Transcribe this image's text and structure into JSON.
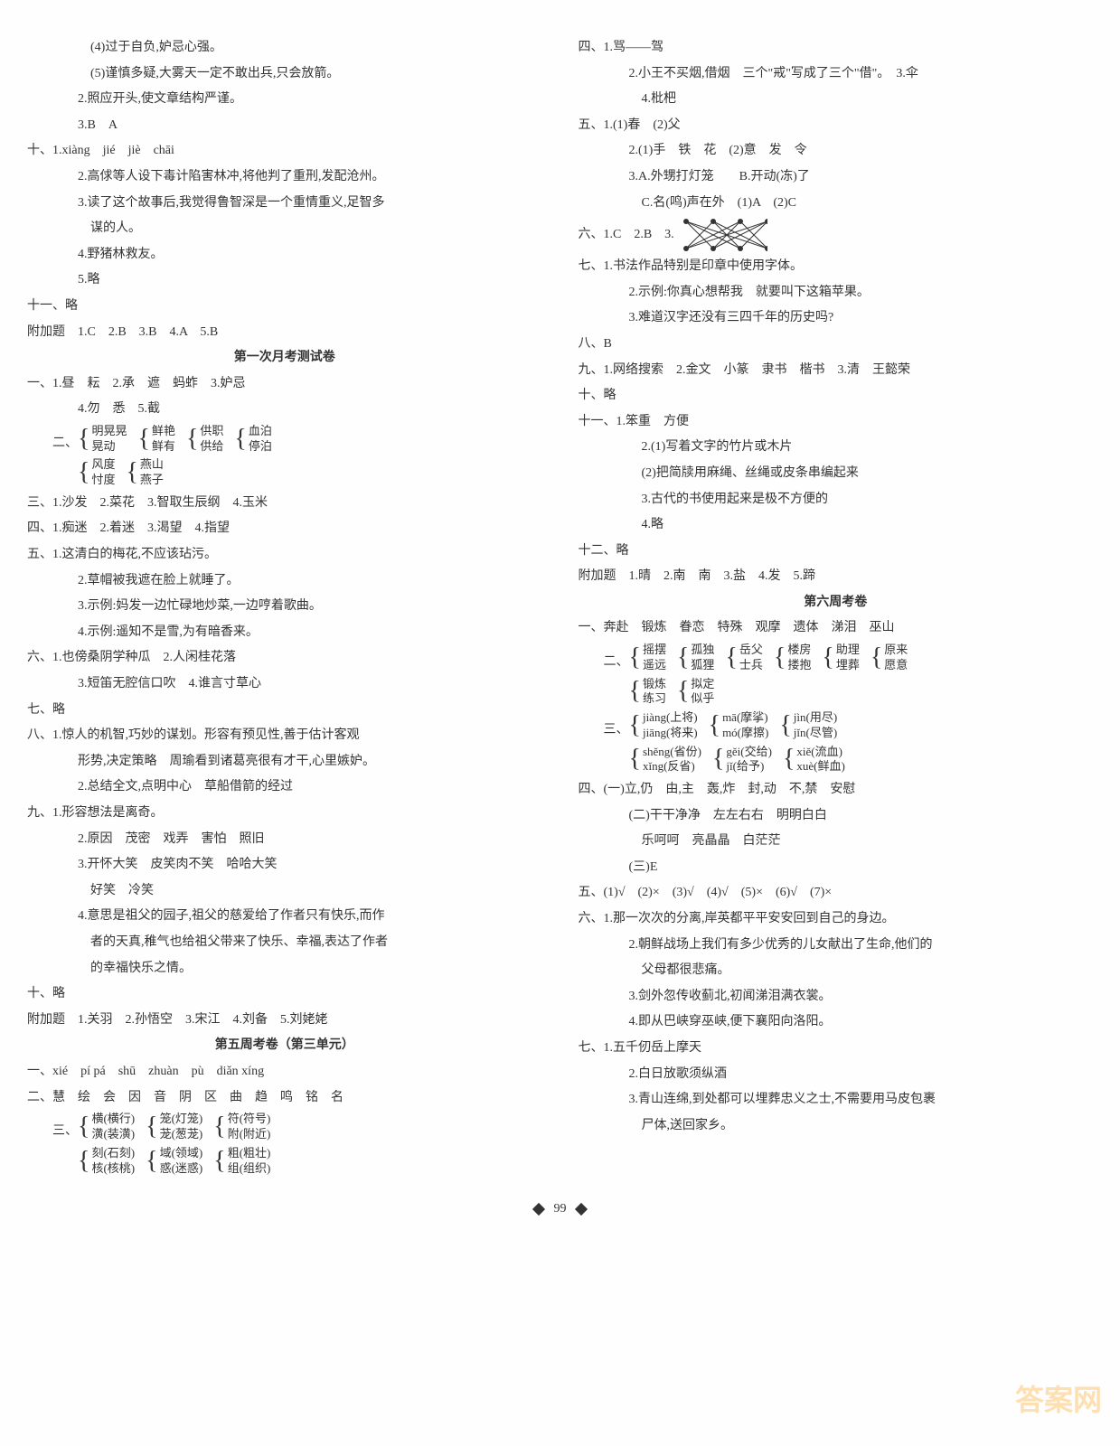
{
  "left": {
    "lines": [
      {
        "text": "(4)过于自负,妒忌心强。",
        "cls": "indent-3"
      },
      {
        "text": "(5)谨慎多疑,大雾天一定不敢出兵,只会放箭。",
        "cls": "indent-3"
      },
      {
        "text": "2.照应开头,使文章结构严谨。",
        "cls": "indent-2"
      },
      {
        "text": "3.B　A",
        "cls": "indent-2"
      },
      {
        "text": "十、1.xiàng　jié　jiè　chāi",
        "cls": ""
      },
      {
        "text": "2.高俅等人设下毒计陷害林冲,将他判了重刑,发配沧州。",
        "cls": "indent-2"
      },
      {
        "text": "3.读了这个故事后,我觉得鲁智深是一个重情重义,足智多",
        "cls": "indent-2"
      },
      {
        "text": "谋的人。",
        "cls": "indent-3"
      },
      {
        "text": "4.野猪林救友。",
        "cls": "indent-2"
      },
      {
        "text": "5.略",
        "cls": "indent-2"
      },
      {
        "text": "十一、略",
        "cls": ""
      },
      {
        "text": "附加题　1.C　2.B　3.B　4.A　5.B",
        "cls": ""
      }
    ],
    "section1_title": "第一次月考测试卷",
    "section1": [
      {
        "text": "一、1.昼　耘　2.承　遮　蚂蚱　3.妒忌",
        "cls": ""
      },
      {
        "text": "4.勿　悉　5.截",
        "cls": "indent-2"
      }
    ],
    "brackets_row1": {
      "prefix": "二、",
      "groups": [
        [
          "明晃晃",
          "晃动"
        ],
        [
          "鲜艳",
          "鲜有"
        ],
        [
          "供职",
          "供给"
        ],
        [
          "血泊",
          "停泊"
        ]
      ]
    },
    "brackets_row2": {
      "prefix": "",
      "groups": [
        [
          "风度",
          "忖度"
        ],
        [
          "燕山",
          "燕子"
        ]
      ]
    },
    "section1b": [
      {
        "text": "三、1.沙发　2.菜花　3.智取生辰纲　4.玉米",
        "cls": ""
      },
      {
        "text": "四、1.痴迷　2.着迷　3.渴望　4.指望",
        "cls": ""
      },
      {
        "text": "五、1.这清白的梅花,不应该玷污。",
        "cls": ""
      },
      {
        "text": "2.草帽被我遮在脸上就睡了。",
        "cls": "indent-2"
      },
      {
        "text": "3.示例:妈发一边忙碌地炒菜,一边哼着歌曲。",
        "cls": "indent-2"
      },
      {
        "text": "4.示例:遥知不是雪,为有暗香来。",
        "cls": "indent-2"
      },
      {
        "text": "六、1.也傍桑阴学种瓜　2.人闲桂花落",
        "cls": ""
      },
      {
        "text": "3.短笛无腔信口吹　4.谁言寸草心",
        "cls": "indent-2"
      },
      {
        "text": "七、略",
        "cls": ""
      },
      {
        "text": "八、1.惊人的机智,巧妙的谋划。形容有预见性,善于估计客观",
        "cls": ""
      },
      {
        "text": "形势,决定策略　周瑜看到诸葛亮很有才干,心里嫉妒。",
        "cls": "indent-2"
      },
      {
        "text": "2.总结全文,点明中心　草船借箭的经过",
        "cls": "indent-2"
      },
      {
        "text": "九、1.形容想法是离奇。",
        "cls": ""
      },
      {
        "text": "2.原因　茂密　戏弄　害怕　照旧",
        "cls": "indent-2"
      },
      {
        "text": "3.开怀大笑　皮笑肉不笑　哈哈大笑",
        "cls": "indent-2"
      },
      {
        "text": "好笑　冷笑",
        "cls": "indent-3"
      },
      {
        "text": "4.意思是祖父的园子,祖父的慈爱给了作者只有快乐,而作",
        "cls": "indent-2"
      },
      {
        "text": "者的天真,稚气也给祖父带来了快乐、幸福,表达了作者",
        "cls": "indent-3"
      },
      {
        "text": "的幸福快乐之情。",
        "cls": "indent-3"
      },
      {
        "text": "十、略",
        "cls": ""
      },
      {
        "text": "附加题　1.关羽　2.孙悟空　3.宋江　4.刘备　5.刘姥姥",
        "cls": ""
      }
    ],
    "section2_title": "第五周考卷（第三单元）",
    "section2": [
      {
        "text": "一、xié　pí pá　shū　zhuàn　pù　diǎn xíng",
        "cls": ""
      },
      {
        "text": "二、慧　绘　会　因　音　阴　区　曲　趋　鸣　铭　名",
        "cls": ""
      }
    ],
    "brackets_row3": {
      "prefix": "三、",
      "groups": [
        [
          "横(横行)",
          "潢(装潢)"
        ],
        [
          "笼(灯笼)",
          "茏(葱茏)"
        ],
        [
          "符(符号)",
          "附(附近)"
        ]
      ]
    },
    "brackets_row4": {
      "prefix": "",
      "groups": [
        [
          "刻(石刻)",
          "核(核桃)"
        ],
        [
          "域(领域)",
          "惑(迷惑)"
        ],
        [
          "粗(粗壮)",
          "组(组织)"
        ]
      ]
    }
  },
  "right": {
    "lines": [
      {
        "text": "四、1.骂——驾",
        "cls": ""
      },
      {
        "text": "2.小王不买烟,借烟　三个\"戒\"写成了三个\"借\"。　3.伞",
        "cls": "indent-2"
      },
      {
        "text": "4.枇杷",
        "cls": "indent-3"
      },
      {
        "text": "五、1.(1)春　(2)父",
        "cls": ""
      },
      {
        "text": "2.(1)手　铁　花　(2)意　发　令",
        "cls": "indent-2"
      },
      {
        "text": "3.A.外甥打灯笼　　B.开动(冻)了",
        "cls": "indent-2"
      },
      {
        "text": "C.名(鸣)声在外　(1)A　(2)C",
        "cls": "indent-3"
      }
    ],
    "six_prefix": "六、1.C　2.B　3.",
    "cross_svg": {
      "width": 100,
      "height": 40,
      "top_points": [
        10,
        40,
        70,
        100
      ],
      "bottom_points": [
        10,
        40,
        70,
        100
      ],
      "dot_color": "#333",
      "line_color": "#333"
    },
    "lines2": [
      {
        "text": "七、1.书法作品特别是印章中使用字体。",
        "cls": ""
      },
      {
        "text": "2.示例:你真心想帮我　就要叫下这箱苹果。",
        "cls": "indent-2"
      },
      {
        "text": "3.难道汉字还没有三四千年的历史吗?",
        "cls": "indent-2"
      },
      {
        "text": "八、B",
        "cls": ""
      },
      {
        "text": "九、1.网络搜索　2.金文　小篆　隶书　楷书　3.清　王懿荣",
        "cls": ""
      },
      {
        "text": "十、略",
        "cls": ""
      },
      {
        "text": "十一、1.笨重　方便",
        "cls": ""
      },
      {
        "text": "2.(1)写着文字的竹片或木片",
        "cls": "indent-3"
      },
      {
        "text": "(2)把简牍用麻绳、丝绳或皮条串编起来",
        "cls": "indent-3"
      },
      {
        "text": "3.古代的书使用起来是极不方便的",
        "cls": "indent-3"
      },
      {
        "text": "4.略",
        "cls": "indent-3"
      },
      {
        "text": "十二、略",
        "cls": ""
      },
      {
        "text": "附加题　1.晴　2.南　南　3.盐　4.发　5.蹄",
        "cls": ""
      }
    ],
    "section3_title": "第六周考卷",
    "section3a": [
      {
        "text": "一、奔赴　锻炼　眷恋　特殊　观摩　遗体　涕泪　巫山",
        "cls": ""
      }
    ],
    "brackets_r1": {
      "prefix": "二、",
      "groups": [
        [
          "摇摆",
          "遥远"
        ],
        [
          "孤独",
          "狐狸"
        ],
        [
          "岳父",
          "士兵"
        ],
        [
          "楼房",
          "搂抱"
        ],
        [
          "助理",
          "埋葬"
        ],
        [
          "原来",
          "愿意"
        ]
      ]
    },
    "brackets_r2": {
      "prefix": "",
      "groups": [
        [
          "锻炼",
          "练习"
        ],
        [
          "拟定",
          "似乎"
        ]
      ]
    },
    "brackets_r3": {
      "prefix": "三、",
      "groups": [
        [
          "jiàng(上将)",
          "jiāng(将来)"
        ],
        [
          "mā(摩挲)",
          "mó(摩擦)"
        ],
        [
          "jìn(用尽)",
          "jǐn(尽管)"
        ]
      ]
    },
    "brackets_r4": {
      "prefix": "",
      "groups": [
        [
          "shěng(省份)",
          "xǐng(反省)"
        ],
        [
          "gěi(交给)",
          "jǐ(给予)"
        ],
        [
          "xiě(流血)",
          "xuè(鲜血)"
        ]
      ]
    },
    "section3b": [
      {
        "text": "四、(一)立,仍　由,主　轰,炸　封,动　不,禁　安慰",
        "cls": ""
      },
      {
        "text": "(二)干干净净　左左右右　明明白白",
        "cls": "indent-2"
      },
      {
        "text": "乐呵呵　亮晶晶　白茫茫",
        "cls": "indent-3"
      },
      {
        "text": "(三)E",
        "cls": "indent-2"
      },
      {
        "text": "五、(1)√　(2)×　(3)√　(4)√　(5)×　(6)√　(7)×",
        "cls": ""
      },
      {
        "text": "六、1.那一次次的分离,岸英都平平安安回到自己的身边。",
        "cls": ""
      },
      {
        "text": "2.朝鲜战场上我们有多少优秀的儿女献出了生命,他们的",
        "cls": "indent-2"
      },
      {
        "text": "父母都很悲痛。",
        "cls": "indent-3"
      },
      {
        "text": "3.剑外忽传收蓟北,初闻涕泪满衣裳。",
        "cls": "indent-2"
      },
      {
        "text": "4.即从巴峡穿巫峡,便下襄阳向洛阳。",
        "cls": "indent-2"
      },
      {
        "text": "七、1.五千仞岳上摩天",
        "cls": ""
      },
      {
        "text": "2.白日放歌须纵酒",
        "cls": "indent-2"
      },
      {
        "text": "3.青山连绵,到处都可以埋葬忠义之士,不需要用马皮包裹",
        "cls": "indent-2"
      },
      {
        "text": "尸体,送回家乡。",
        "cls": "indent-3"
      }
    ]
  },
  "page_number": "99",
  "watermark": "答案网"
}
